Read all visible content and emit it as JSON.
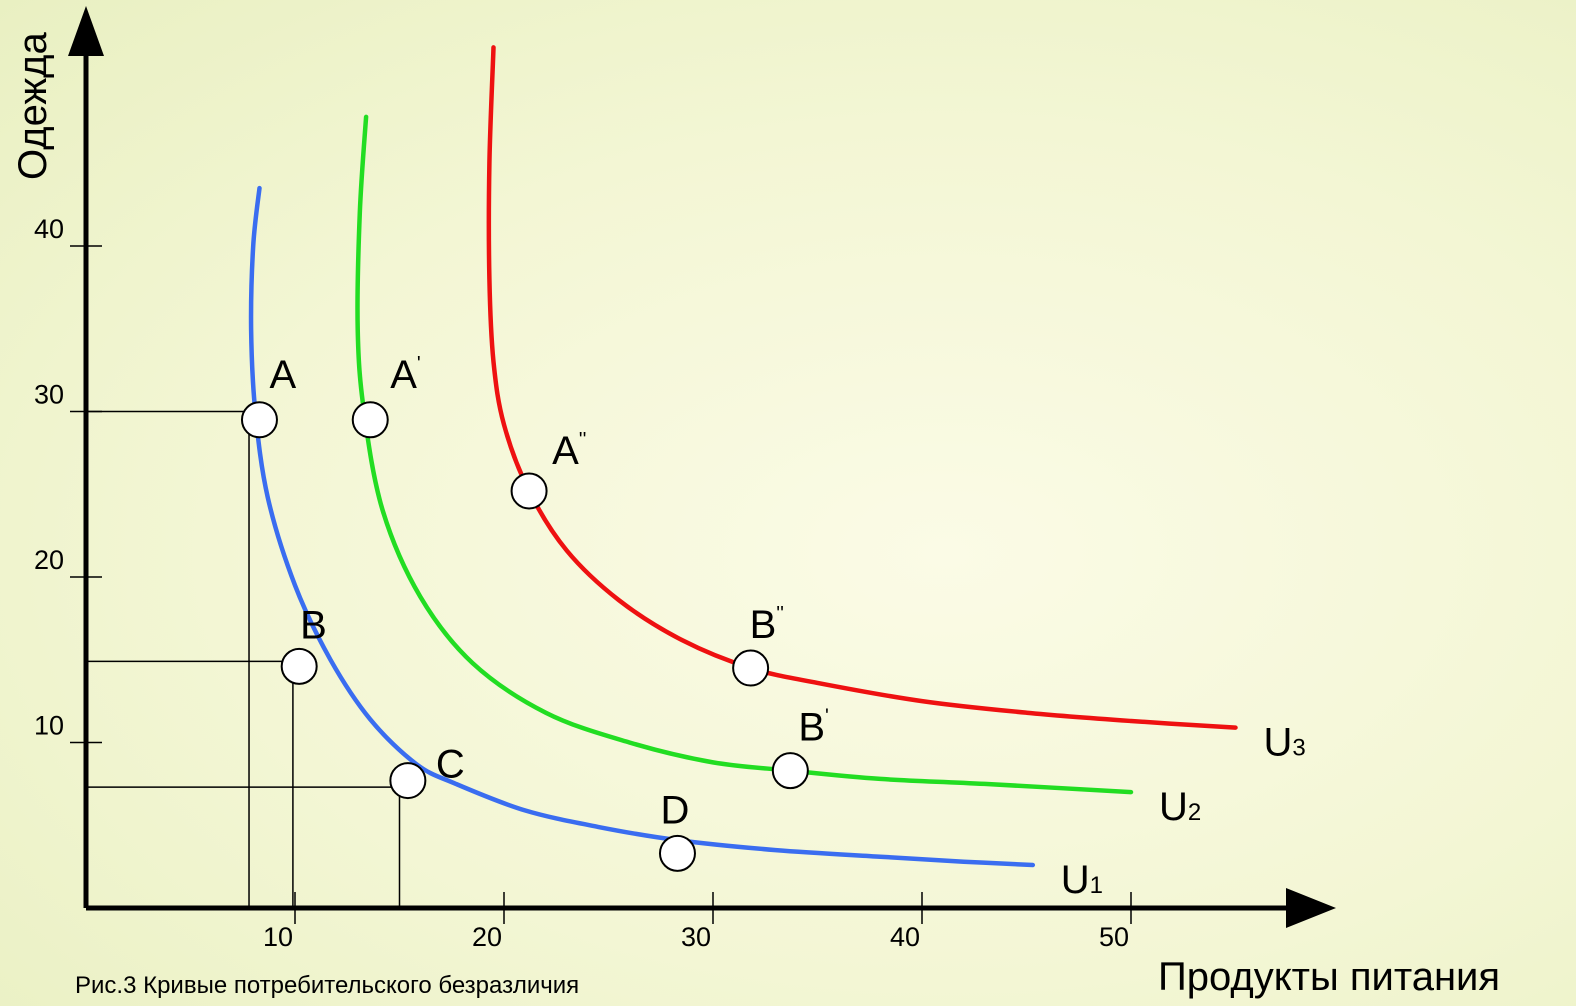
{
  "chart_data": {
    "type": "line",
    "title": "",
    "caption": "Рис.3 Кривые потребительского безразличия",
    "xlabel": "Продукты питания",
    "ylabel": "Одежда",
    "xlim": [
      0,
      56
    ],
    "ylim": [
      0,
      50
    ],
    "x_ticks": [
      "10",
      "20",
      "30",
      "40",
      "50"
    ],
    "y_ticks": [
      "10",
      "20",
      "30",
      "40"
    ],
    "grid": false,
    "legend": "none",
    "series": [
      {
        "name": "U1",
        "label_main": "U",
        "label_sub": "1",
        "color": "#3a6df0",
        "x": [
          8.3,
          8.0,
          7.9,
          8.1,
          8.7,
          10.0,
          11.7,
          13.6,
          15.8,
          17.7,
          21.0,
          24.5,
          28.3,
          33.0,
          38.0,
          42.0,
          45.3
        ],
        "y": [
          43.5,
          40.0,
          35.0,
          30.0,
          24.8,
          19.5,
          15.0,
          11.4,
          8.7,
          7.5,
          5.9,
          4.9,
          4.1,
          3.5,
          3.1,
          2.8,
          2.6
        ]
      },
      {
        "name": "U2",
        "label_main": "U",
        "label_sub": "2",
        "color": "#22dd22",
        "x": [
          13.4,
          13.1,
          13.0,
          13.3,
          14.2,
          16.0,
          18.5,
          22.0,
          26.0,
          30.0,
          33.7,
          38.0,
          43.0,
          50.0
        ],
        "y": [
          47.8,
          42.0,
          35.0,
          30.0,
          24.0,
          18.8,
          14.8,
          11.8,
          10.0,
          8.8,
          8.3,
          7.8,
          7.5,
          7.0
        ]
      },
      {
        "name": "U3",
        "label_main": "U",
        "label_sub": "3",
        "color": "#ee1111",
        "x": [
          19.5,
          19.3,
          19.3,
          19.5,
          20.0,
          21.2,
          23.0,
          25.5,
          28.5,
          31.8,
          35.0,
          40.0,
          45.0,
          50.0,
          55.0
        ],
        "y": [
          52.0,
          45.0,
          38.0,
          33.0,
          29.2,
          25.2,
          21.6,
          18.6,
          16.2,
          14.5,
          13.6,
          12.5,
          11.8,
          11.3,
          10.9
        ]
      }
    ],
    "points": [
      {
        "label": "A",
        "mark": "",
        "x": 8.3,
        "y": 29.5,
        "dx": 10,
        "dy": -32
      },
      {
        "label": "A",
        "mark": "'",
        "x": 13.6,
        "y": 29.5,
        "dx": 20,
        "dy": -32
      },
      {
        "label": "A",
        "mark": "''",
        "x": 21.2,
        "y": 25.2,
        "dx": 23,
        "dy": -27
      },
      {
        "label": "B",
        "mark": "",
        "x": 10.2,
        "y": 14.6,
        "dx": 1,
        "dy": -28
      },
      {
        "label": "B",
        "mark": "''",
        "x": 31.8,
        "y": 14.5,
        "dx": -1,
        "dy": -30
      },
      {
        "label": "B",
        "mark": "'",
        "x": 33.7,
        "y": 8.3,
        "dx": 8,
        "dy": -30
      },
      {
        "label": "C",
        "mark": "",
        "x": 15.4,
        "y": 7.7,
        "dx": 28,
        "dy": -3
      },
      {
        "label": "D",
        "mark": "",
        "x": 28.3,
        "y": 3.3,
        "dx": -17,
        "dy": -30
      }
    ],
    "guide_lines": [
      {
        "x": 7.8,
        "y": 30.0
      },
      {
        "x": 9.9,
        "y": 14.9
      },
      {
        "x": 15.0,
        "y": 7.3
      }
    ]
  }
}
